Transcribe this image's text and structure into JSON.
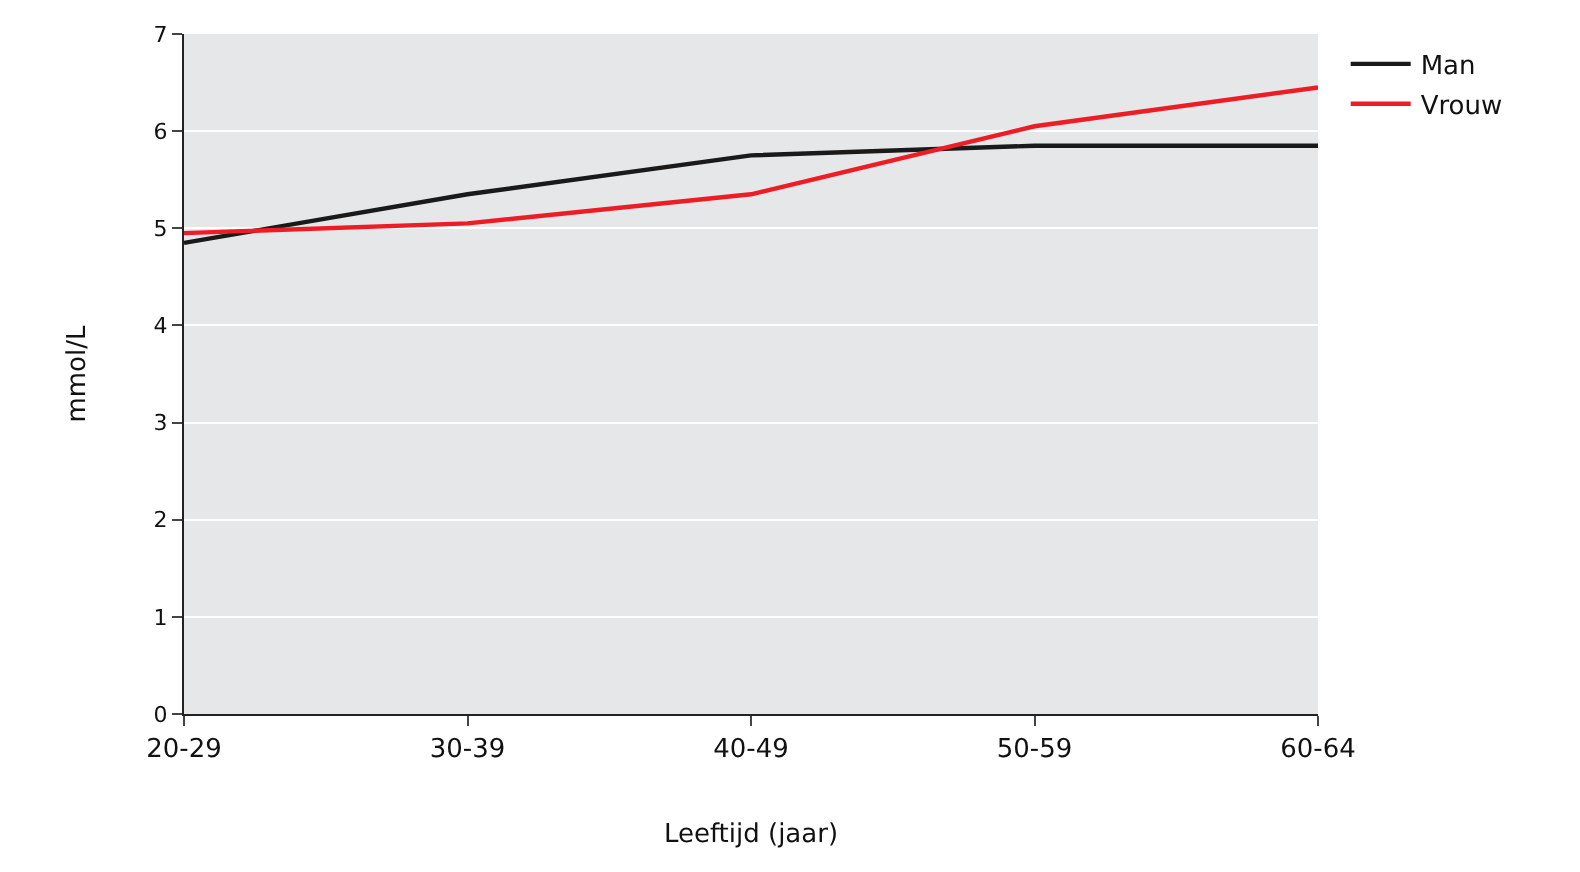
{
  "chart_data": {
    "type": "line",
    "xlabel": "Leeftijd (jaar)",
    "ylabel": "mmol/L",
    "categories": [
      "20-29",
      "30-39",
      "40-49",
      "50-59",
      "60-64"
    ],
    "series": [
      {
        "name": "Man",
        "color": "#1a1a1a",
        "values": [
          4.85,
          5.35,
          5.75,
          5.85,
          5.85
        ]
      },
      {
        "name": "Vrouw",
        "color": "#ee1c25",
        "values": [
          4.95,
          5.05,
          5.35,
          6.05,
          6.45
        ]
      }
    ],
    "ylim": [
      0,
      7
    ],
    "yticks": [
      0,
      1,
      2,
      3,
      4,
      5,
      6,
      7
    ],
    "grid": "y",
    "legend": "top right",
    "marker": "none",
    "line_style": "solid"
  }
}
